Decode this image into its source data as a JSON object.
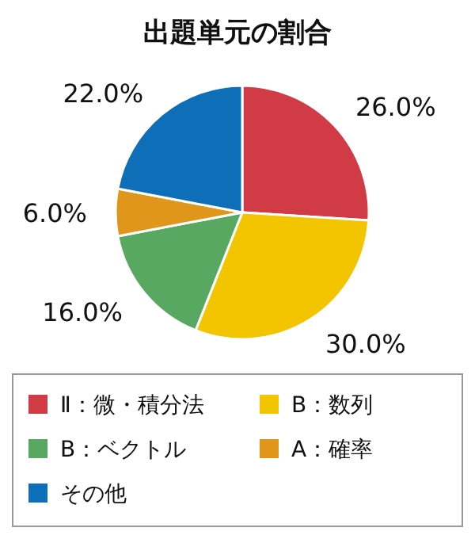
{
  "chart_data": {
    "type": "pie",
    "title": "出題単元の割合",
    "categories": [
      "Ⅱ：微・積分法",
      "B：数列",
      "B：ベクトル",
      "A：確率",
      "その他"
    ],
    "values": [
      26,
      30,
      16,
      6,
      22
    ],
    "value_labels": [
      "26.0%",
      "30.0%",
      "16.0%",
      "6.0%",
      "22.0%"
    ],
    "colors": [
      "#d13b45",
      "#f2c500",
      "#58a862",
      "#e0961a",
      "#0e6eb8"
    ],
    "legend": "bottom"
  }
}
